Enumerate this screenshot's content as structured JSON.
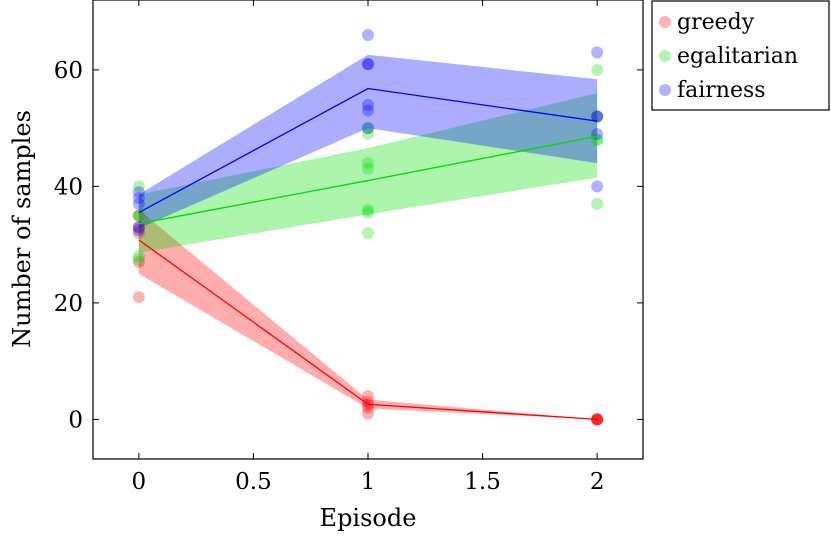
{
  "chart_data": {
    "type": "scatter",
    "xlabel": "Episode",
    "ylabel": "Number of samples",
    "xlim": [
      -0.2,
      2.2
    ],
    "ylim": [
      -6.8,
      72
    ],
    "x_ticks": [
      0,
      0.5,
      1,
      1.5,
      2
    ],
    "x_tick_labels": [
      "0",
      "0.5",
      "1",
      "1.5",
      "2"
    ],
    "y_ticks": [
      0,
      20,
      40,
      60
    ],
    "y_tick_labels": [
      "0",
      "20",
      "40",
      "60"
    ],
    "grid": false,
    "legend_position": "outside-top-right",
    "series": [
      {
        "name": "greedy",
        "color": "#ff0000",
        "mean": [
          [
            0,
            30.8
          ],
          [
            1,
            2.6
          ],
          [
            2,
            0
          ]
        ],
        "band_lower": [
          25.0,
          1.9,
          0
        ],
        "band_upper": [
          36.0,
          3.4,
          0
        ],
        "points": [
          [
            0,
            35
          ],
          [
            0,
            33
          ],
          [
            0,
            32
          ],
          [
            0,
            27
          ],
          [
            0,
            21
          ],
          [
            1,
            4
          ],
          [
            1,
            3
          ],
          [
            1,
            2.5
          ],
          [
            1,
            2
          ],
          [
            1,
            1
          ],
          [
            2,
            0
          ],
          [
            2,
            0
          ],
          [
            2,
            0
          ],
          [
            2,
            0
          ],
          [
            2,
            0
          ]
        ]
      },
      {
        "name": "egalitarian",
        "color": "#00dd00",
        "mean": [
          [
            0,
            33.6
          ],
          [
            1,
            41.0
          ],
          [
            2,
            48.6
          ]
        ],
        "band_lower": [
          28.6,
          35.2,
          41.5
        ],
        "band_upper": [
          38.6,
          46.6,
          56.0
        ],
        "points": [
          [
            0,
            40
          ],
          [
            0,
            35
          ],
          [
            0,
            35
          ],
          [
            0,
            28
          ],
          [
            0,
            27.5
          ],
          [
            1,
            50
          ],
          [
            1,
            49
          ],
          [
            1,
            44
          ],
          [
            1,
            43
          ],
          [
            1,
            36
          ],
          [
            1,
            35.5
          ],
          [
            1,
            32
          ],
          [
            2,
            60
          ],
          [
            2,
            52
          ],
          [
            2,
            48
          ],
          [
            2,
            48
          ],
          [
            2,
            37
          ]
        ]
      },
      {
        "name": "fairness",
        "color": "#0000ff",
        "mean": [
          [
            0,
            35.5
          ],
          [
            1,
            56.8
          ],
          [
            2,
            51.2
          ]
        ],
        "band_lower": [
          32.8,
          50.0,
          44.0
        ],
        "band_upper": [
          38.6,
          62.6,
          58.4
        ],
        "points": [
          [
            0,
            39
          ],
          [
            0,
            38
          ],
          [
            0,
            37
          ],
          [
            0,
            33
          ],
          [
            0,
            32.5
          ],
          [
            1,
            66
          ],
          [
            1,
            61
          ],
          [
            1,
            61
          ],
          [
            1,
            54
          ],
          [
            1,
            53
          ],
          [
            1,
            50
          ],
          [
            2,
            63
          ],
          [
            2,
            52
          ],
          [
            2,
            52
          ],
          [
            2,
            49
          ],
          [
            2,
            40
          ]
        ]
      }
    ]
  }
}
